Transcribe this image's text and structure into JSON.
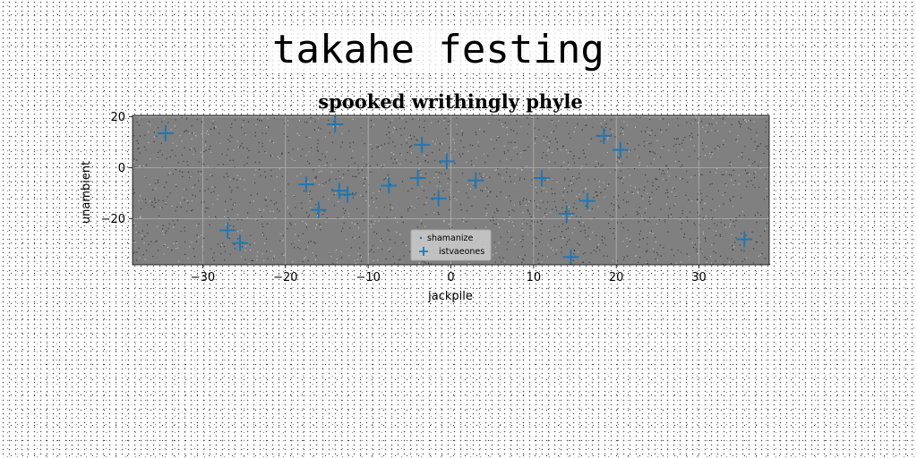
{
  "page": {
    "title": "takahe festing"
  },
  "chart_data": {
    "type": "scatter",
    "title": "spooked writhingly phyle",
    "xlabel": "jackpile",
    "ylabel": "unambient",
    "xlim": [
      -38.5,
      38.5
    ],
    "ylim": [
      -38,
      20.5
    ],
    "xticks": [
      -30,
      -20,
      -10,
      0,
      10,
      20,
      30
    ],
    "yticks": [
      20,
      0,
      -20
    ],
    "grid": true,
    "legend_position": "bottom-center",
    "colors": {
      "plot_bg": "#808080",
      "grid": "#b0b0b0",
      "marker": "#1f77b4"
    },
    "series": [
      {
        "name": "shamanize",
        "marker": "dot",
        "x": [],
        "y": []
      },
      {
        "name": "istvaeones",
        "marker": "plus",
        "x": [
          -34.5,
          -14,
          -3.5,
          -0.5,
          18.5,
          20.5,
          -17.5,
          -13.5,
          -12.5,
          -7.5,
          -4,
          -1.5,
          3,
          11,
          16.5,
          14,
          -16,
          -27,
          -25.5,
          14.5,
          35.5
        ],
        "y": [
          13.5,
          17,
          9,
          2.5,
          12.5,
          7,
          -6.5,
          -9,
          -10.5,
          -7,
          -4,
          -12,
          -5,
          -4,
          -13,
          -18,
          -16.5,
          -24.5,
          -29.5,
          -35,
          -28
        ]
      }
    ]
  }
}
